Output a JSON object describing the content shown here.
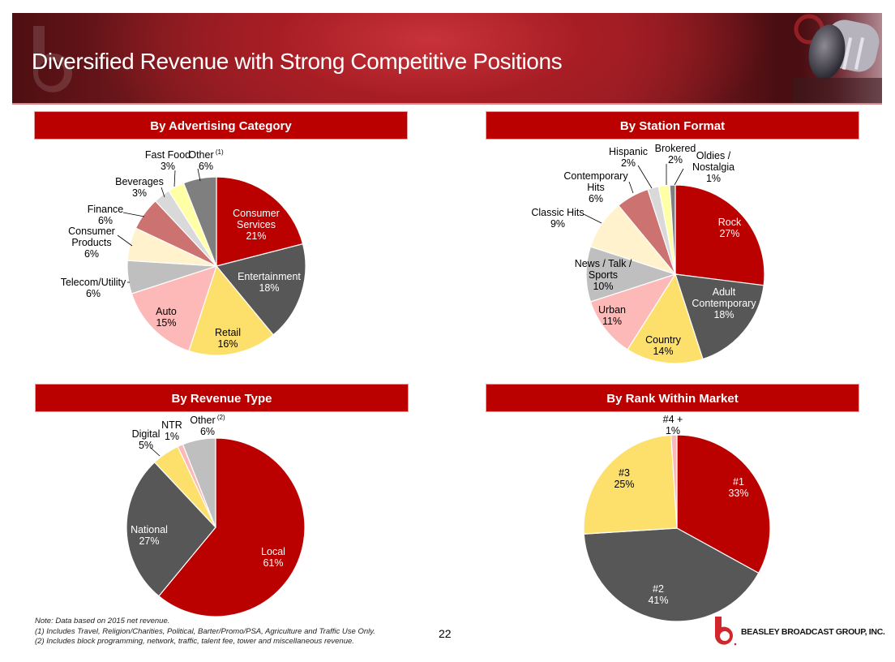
{
  "header": {
    "title": "Diversified Revenue with Strong Competitive Positions"
  },
  "colors": {
    "brand_red": "#bb0000",
    "dark_gray": "#575757",
    "yellow": "#fde06b",
    "pink": "#fdb9b7",
    "light_gray": "#bfbfbf",
    "cream": "#fff2cc",
    "rose": "#cc7270",
    "pale_gray": "#d9d9d9",
    "pale_yellow": "#ffffa5",
    "mid_gray": "#7f7f7f"
  },
  "sections": {
    "advertising": {
      "title": "By Advertising Category"
    },
    "station": {
      "title": "By Station Format"
    },
    "revenue": {
      "title": "By Revenue Type"
    },
    "rank": {
      "title": "By Rank Within Market"
    }
  },
  "chart_data": [
    {
      "id": "advertising",
      "type": "pie",
      "title": "By Advertising Category",
      "slices": [
        {
          "label": "Consumer Services",
          "value": 21,
          "display": "21%",
          "color": "#bb0000"
        },
        {
          "label": "Entertainment",
          "value": 18,
          "display": "18%",
          "color": "#575757"
        },
        {
          "label": "Retail",
          "value": 16,
          "display": "16%",
          "color": "#fde06b"
        },
        {
          "label": "Auto",
          "value": 15,
          "display": "15%",
          "color": "#fdb9b7"
        },
        {
          "label": "Telecom/Utility",
          "value": 6,
          "display": "6%",
          "color": "#bfbfbf"
        },
        {
          "label": "Consumer Products",
          "value": 6,
          "display": "6%",
          "color": "#fff2cc"
        },
        {
          "label": "Finance",
          "value": 6,
          "display": "6%",
          "color": "#cc7270"
        },
        {
          "label": "Beverages",
          "value": 3,
          "display": "3%",
          "color": "#d9d9d9"
        },
        {
          "label": "Fast Food",
          "value": 3,
          "display": "3%",
          "color": "#ffffa5"
        },
        {
          "label": "Other",
          "value": 6,
          "display": "6%",
          "color": "#7f7f7f",
          "footnote": "(1)"
        }
      ]
    },
    {
      "id": "station",
      "type": "pie",
      "title": "By Station Format",
      "slices": [
        {
          "label": "Rock",
          "value": 27,
          "display": "27%",
          "color": "#bb0000"
        },
        {
          "label": "Adult Contemporary",
          "value": 18,
          "display": "18%",
          "color": "#575757"
        },
        {
          "label": "Country",
          "value": 14,
          "display": "14%",
          "color": "#fde06b"
        },
        {
          "label": "Urban",
          "value": 11,
          "display": "11%",
          "color": "#fdb9b7"
        },
        {
          "label": "News / Talk / Sports",
          "value": 10,
          "display": "10%",
          "color": "#bfbfbf"
        },
        {
          "label": "Classic Hits",
          "value": 9,
          "display": "9%",
          "color": "#fff2cc"
        },
        {
          "label": "Contemporary Hits",
          "value": 6,
          "display": "6%",
          "color": "#cc7270"
        },
        {
          "label": "Hispanic",
          "value": 2,
          "display": "2%",
          "color": "#d9d9d9"
        },
        {
          "label": "Brokered",
          "value": 2,
          "display": "2%",
          "color": "#ffffa5"
        },
        {
          "label": "Oldies / Nostalgia",
          "value": 1,
          "display": "1%",
          "color": "#7f7f7f"
        }
      ]
    },
    {
      "id": "revenue",
      "type": "pie",
      "title": "By Revenue Type",
      "slices": [
        {
          "label": "Local",
          "value": 61,
          "display": "61%",
          "color": "#bb0000"
        },
        {
          "label": "National",
          "value": 27,
          "display": "27%",
          "color": "#575757"
        },
        {
          "label": "Digital",
          "value": 5,
          "display": "5%",
          "color": "#fde06b"
        },
        {
          "label": "NTR",
          "value": 1,
          "display": "1%",
          "color": "#fdb9b7"
        },
        {
          "label": "Other",
          "value": 6,
          "display": "6%",
          "color": "#bfbfbf",
          "footnote": "(2)"
        }
      ]
    },
    {
      "id": "rank",
      "type": "pie",
      "title": "By Rank Within Market",
      "slices": [
        {
          "label": "#1",
          "value": 33,
          "display": "33%",
          "color": "#bb0000"
        },
        {
          "label": "#2",
          "value": 41,
          "display": "41%",
          "color": "#575757"
        },
        {
          "label": "#3",
          "value": 25,
          "display": "25%",
          "color": "#fde06b"
        },
        {
          "label": "#4 +",
          "value": 1,
          "display": "1%",
          "color": "#fdb9b7"
        }
      ]
    }
  ],
  "footnotes": {
    "note": "Note: Data based on 2015 net revenue.",
    "fn1": "(1) Includes Travel, Religion/Charities, Political, Barter/Promo/PSA, Agriculture and Traffic Use Only.",
    "fn2": "(2) Includes block programming, network, traffic, talent fee, tower and miscellaneous revenue."
  },
  "page_number": "22",
  "logo": {
    "text": "BEASLEY BROADCAST GROUP, INC."
  }
}
